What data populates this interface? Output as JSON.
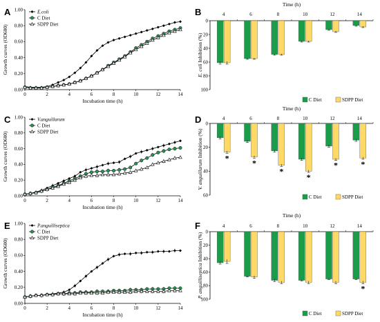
{
  "chart_data": [
    {
      "id": "A",
      "type": "line",
      "panel_label": "A",
      "xlabel": "Incubation time (h)",
      "ylabel": "Growth curves (OD600)",
      "xlim": [
        0,
        14
      ],
      "ylim": [
        0,
        1.0
      ],
      "xticks": [
        0,
        2,
        4,
        6,
        8,
        10,
        12,
        14
      ],
      "yticks": [
        0,
        0.2,
        0.4,
        0.6,
        0.8,
        1.0
      ],
      "ytick_labels": [
        "0.00",
        "0.20",
        "0.40",
        "0.60",
        "0.80",
        "1.00"
      ],
      "legend_position": "top-left",
      "x": [
        0,
        0.5,
        1,
        1.5,
        2,
        2.5,
        3,
        3.5,
        4,
        4.5,
        5,
        5.5,
        6,
        6.5,
        7,
        7.5,
        8,
        8.5,
        9,
        9.5,
        10,
        10.5,
        11,
        11.5,
        12,
        12.5,
        13,
        13.5,
        14
      ],
      "series": [
        {
          "name": "E.coli",
          "italic": true,
          "marker": "diamond",
          "values": [
            0.04,
            0.03,
            0.03,
            0.03,
            0.04,
            0.06,
            0.09,
            0.12,
            0.16,
            0.21,
            0.27,
            0.34,
            0.42,
            0.49,
            0.55,
            0.59,
            0.62,
            0.64,
            0.66,
            0.68,
            0.7,
            0.72,
            0.74,
            0.76,
            0.78,
            0.8,
            0.82,
            0.84,
            0.85
          ]
        },
        {
          "name": "C Diet",
          "italic": false,
          "marker": "circle",
          "values": [
            0.03,
            0.02,
            0.02,
            0.02,
            0.03,
            0.04,
            0.05,
            0.06,
            0.07,
            0.09,
            0.11,
            0.14,
            0.17,
            0.21,
            0.25,
            0.3,
            0.34,
            0.38,
            0.42,
            0.47,
            0.52,
            0.56,
            0.6,
            0.64,
            0.67,
            0.7,
            0.73,
            0.75,
            0.77
          ]
        },
        {
          "name": "SDPP Diet",
          "italic": false,
          "marker": "triangle",
          "values": [
            0.03,
            0.02,
            0.02,
            0.02,
            0.03,
            0.04,
            0.05,
            0.06,
            0.07,
            0.09,
            0.11,
            0.14,
            0.17,
            0.21,
            0.25,
            0.29,
            0.33,
            0.37,
            0.41,
            0.46,
            0.5,
            0.54,
            0.58,
            0.62,
            0.65,
            0.68,
            0.71,
            0.73,
            0.75
          ]
        }
      ]
    },
    {
      "id": "B",
      "type": "bar",
      "panel_label": "B",
      "xlabel_top": "Time (h)",
      "ylabel": "E. coli Inhibition (%)",
      "ylabel_italic_part": "E. coli",
      "categories": [
        "4",
        "6",
        "8",
        "10",
        "12",
        "14"
      ],
      "ylim": [
        0,
        100
      ],
      "yticks": [
        0,
        20,
        40,
        60,
        80,
        100
      ],
      "y_inverted": true,
      "legend_position": "bottom-right",
      "series": [
        {
          "name": "C Diet",
          "color": "#1a9d49",
          "values": [
            61,
            55,
            49,
            30,
            13,
            7
          ],
          "errors": [
            2,
            1,
            1,
            1,
            1,
            1
          ]
        },
        {
          "name": "SDPP Diet",
          "color": "#ffd966",
          "values": [
            61,
            55,
            49,
            30,
            16,
            9
          ],
          "errors": [
            2,
            1,
            1,
            1,
            1,
            1
          ]
        }
      ],
      "significance": []
    },
    {
      "id": "C",
      "type": "line",
      "panel_label": "C",
      "xlabel": "Incubation time (h)",
      "ylabel": "Growth curves (OD600)",
      "xlim": [
        0,
        14
      ],
      "ylim": [
        0,
        1.0
      ],
      "xticks": [
        0,
        2,
        4,
        6,
        8,
        10,
        12,
        14
      ],
      "yticks": [
        0,
        0.2,
        0.4,
        0.6,
        0.8,
        1.0
      ],
      "ytick_labels": [
        "0.00",
        "0.20",
        "0.40",
        "0.60",
        "0.80",
        "1.00"
      ],
      "legend_position": "top-left",
      "x": [
        0,
        0.5,
        1,
        1.5,
        2,
        2.5,
        3,
        3.5,
        4,
        4.5,
        5,
        5.5,
        6,
        6.5,
        7,
        7.5,
        8,
        8.5,
        9,
        9.5,
        10,
        10.5,
        11,
        11.5,
        12,
        12.5,
        13,
        13.5,
        14
      ],
      "series": [
        {
          "name": "V.anguillarum",
          "italic": true,
          "marker": "diamond",
          "values": [
            0.02,
            0.03,
            0.05,
            0.07,
            0.1,
            0.13,
            0.16,
            0.19,
            0.22,
            0.25,
            0.3,
            0.33,
            0.35,
            0.37,
            0.39,
            0.41,
            0.42,
            0.43,
            0.47,
            0.5,
            0.54,
            0.56,
            0.58,
            0.6,
            0.62,
            0.64,
            0.66,
            0.68,
            0.7
          ]
        },
        {
          "name": "C Diet",
          "italic": false,
          "marker": "circle",
          "values": [
            0.02,
            0.03,
            0.04,
            0.06,
            0.08,
            0.11,
            0.13,
            0.16,
            0.19,
            0.22,
            0.25,
            0.28,
            0.3,
            0.31,
            0.31,
            0.32,
            0.32,
            0.33,
            0.34,
            0.36,
            0.41,
            0.45,
            0.48,
            0.52,
            0.55,
            0.57,
            0.59,
            0.6,
            0.61
          ]
        },
        {
          "name": "SDPP Diet",
          "italic": false,
          "marker": "triangle",
          "values": [
            0.02,
            0.03,
            0.04,
            0.06,
            0.08,
            0.1,
            0.12,
            0.15,
            0.17,
            0.2,
            0.23,
            0.25,
            0.26,
            0.26,
            0.27,
            0.27,
            0.27,
            0.28,
            0.29,
            0.3,
            0.32,
            0.34,
            0.36,
            0.4,
            0.42,
            0.44,
            0.46,
            0.48,
            0.49
          ]
        }
      ]
    },
    {
      "id": "D",
      "type": "bar",
      "panel_label": "D",
      "xlabel_top": "Time (h)",
      "ylabel": "V. anguillarum Inhibition (%)",
      "ylabel_italic_part": "V. anguillarum",
      "categories": [
        "4",
        "6",
        "8",
        "10",
        "12",
        "14"
      ],
      "ylim": [
        0,
        60
      ],
      "yticks": [
        0,
        20,
        40,
        60
      ],
      "y_inverted": true,
      "legend_position": "bottom-right",
      "series": [
        {
          "name": "C Diet",
          "color": "#1a9d49",
          "values": [
            12,
            15,
            23,
            30,
            19,
            14
          ],
          "errors": [
            1,
            1,
            1,
            1,
            1,
            1
          ]
        },
        {
          "name": "SDPP Diet",
          "color": "#ffd966",
          "values": [
            24,
            28,
            35,
            40,
            30,
            29
          ],
          "errors": [
            1,
            1,
            1,
            1,
            1,
            1
          ]
        }
      ],
      "significance": [
        "*",
        "*",
        "*",
        "*",
        "*",
        "*"
      ]
    },
    {
      "id": "E",
      "type": "line",
      "panel_label": "E",
      "xlabel": "Incubation time (h)",
      "ylabel": "Growth curves (OD600)",
      "xlim": [
        0,
        14
      ],
      "ylim": [
        0,
        1.0
      ],
      "xticks": [
        0,
        2,
        4,
        6,
        8,
        10,
        12,
        14
      ],
      "yticks": [
        0,
        0.2,
        0.4,
        0.6,
        0.8,
        1.0
      ],
      "ytick_labels": [
        "0.00",
        "0.20",
        "0.40",
        "0.60",
        "0.80",
        "1.00"
      ],
      "legend_position": "top-left",
      "x": [
        0,
        0.5,
        1,
        1.5,
        2,
        2.5,
        3,
        3.5,
        4,
        4.5,
        5,
        5.5,
        6,
        6.5,
        7,
        7.5,
        8,
        8.5,
        9,
        9.5,
        10,
        10.5,
        11,
        11.5,
        12,
        12.5,
        13,
        13.5,
        14
      ],
      "series": [
        {
          "name": "P.anguilliseptica",
          "italic": true,
          "marker": "diamond",
          "values": [
            0.08,
            0.09,
            0.1,
            0.1,
            0.11,
            0.12,
            0.13,
            0.14,
            0.17,
            0.22,
            0.28,
            0.34,
            0.4,
            0.45,
            0.5,
            0.55,
            0.59,
            0.61,
            0.62,
            0.62,
            0.63,
            0.63,
            0.64,
            0.64,
            0.65,
            0.65,
            0.65,
            0.66,
            0.66
          ]
        },
        {
          "name": "C Diet",
          "italic": false,
          "marker": "circle",
          "values": [
            0.08,
            0.09,
            0.1,
            0.1,
            0.11,
            0.11,
            0.12,
            0.12,
            0.13,
            0.13,
            0.14,
            0.14,
            0.14,
            0.15,
            0.15,
            0.15,
            0.16,
            0.16,
            0.16,
            0.17,
            0.17,
            0.17,
            0.18,
            0.18,
            0.18,
            0.18,
            0.19,
            0.19,
            0.19
          ]
        },
        {
          "name": "SDPP Diet",
          "italic": false,
          "marker": "triangle",
          "values": [
            0.08,
            0.09,
            0.1,
            0.1,
            0.11,
            0.11,
            0.12,
            0.12,
            0.12,
            0.12,
            0.13,
            0.13,
            0.13,
            0.13,
            0.13,
            0.14,
            0.14,
            0.14,
            0.14,
            0.14,
            0.15,
            0.15,
            0.15,
            0.15,
            0.15,
            0.15,
            0.16,
            0.16,
            0.16
          ]
        }
      ]
    },
    {
      "id": "F",
      "type": "bar",
      "panel_label": "F",
      "xlabel_top": "Time (h)",
      "ylabel": "P. anguilliseptica Inhibition (%)",
      "ylabel_italic_part": "P. anguilliseptica",
      "categories": [
        "4",
        "6",
        "8",
        "10",
        "12",
        "14"
      ],
      "ylim": [
        0,
        100
      ],
      "yticks": [
        0,
        20,
        40,
        60,
        80,
        100
      ],
      "y_inverted": true,
      "legend_position": "bottom-right",
      "series": [
        {
          "name": "C Diet",
          "color": "#1a9d49",
          "values": [
            46,
            66,
            72,
            72,
            70,
            70
          ],
          "errors": [
            2,
            1,
            2,
            1,
            1,
            1
          ]
        },
        {
          "name": "SDPP Diet",
          "color": "#ffd966",
          "values": [
            44,
            67,
            75,
            75,
            75,
            75
          ],
          "errors": [
            3,
            2,
            2,
            2,
            2,
            2
          ]
        }
      ],
      "significance": [
        "",
        "",
        "",
        "",
        "",
        "*"
      ]
    }
  ]
}
